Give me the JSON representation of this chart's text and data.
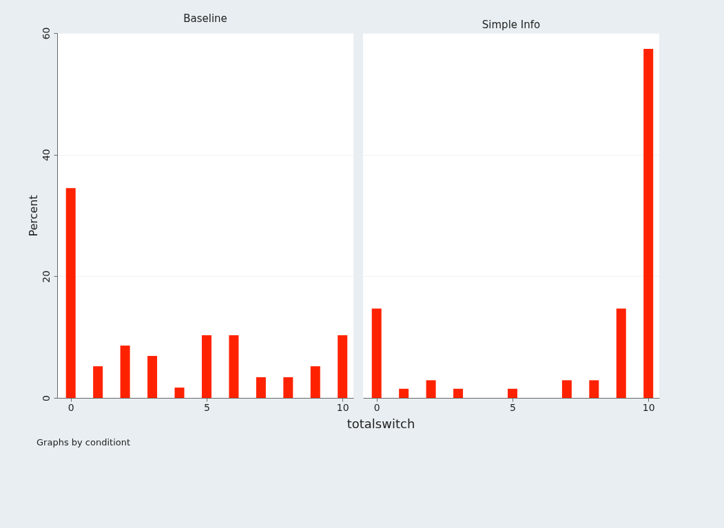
{
  "chart_data": [
    {
      "type": "bar",
      "title": "Baseline",
      "x": [
        0,
        1,
        2,
        3,
        4,
        5,
        6,
        7,
        8,
        9,
        10
      ],
      "values": [
        34.5,
        5.2,
        8.6,
        6.9,
        1.7,
        10.3,
        10.3,
        3.4,
        3.4,
        5.2,
        10.3
      ],
      "color": "#ff2200",
      "xlim": [
        -0.5,
        10.4
      ],
      "xticks": [
        0,
        5,
        10
      ],
      "ylim": [
        0,
        60
      ],
      "yticks": [
        0,
        20,
        40,
        60
      ],
      "grid": "y",
      "ylabel": "Percent",
      "xlabel": "totalswitch",
      "annotations": [
        "Graphs by conditiont"
      ]
    },
    {
      "type": "bar",
      "title": "Simple Info",
      "x": [
        0,
        1,
        2,
        3,
        4,
        5,
        6,
        7,
        8,
        9,
        10
      ],
      "values": [
        14.7,
        1.5,
        2.9,
        1.5,
        0,
        1.5,
        0,
        2.9,
        2.9,
        14.7,
        57.4
      ],
      "color": "#ff2200",
      "xlim": [
        -0.5,
        10.4
      ],
      "xticks": [
        0,
        5,
        10
      ],
      "ylim": [
        0,
        60
      ],
      "yticks": [
        0,
        20,
        40,
        60
      ],
      "grid": "y",
      "tick_labels": "x"
    }
  ]
}
